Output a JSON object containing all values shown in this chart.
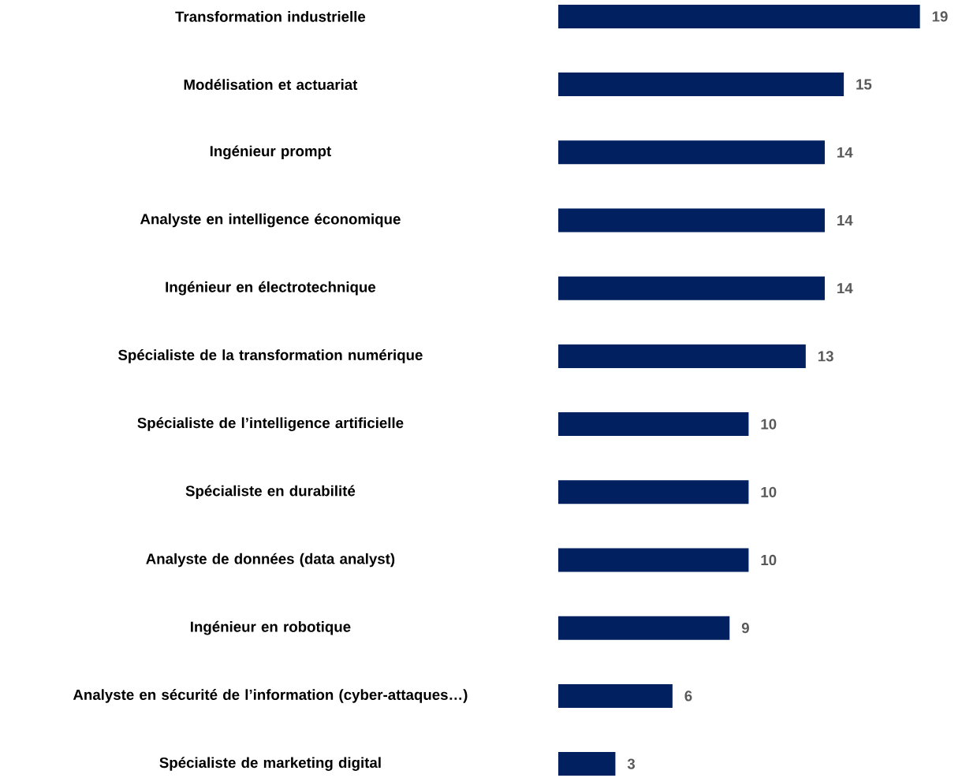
{
  "chart_data": {
    "type": "bar",
    "orientation": "horizontal",
    "categories": [
      "Transformation industrielle",
      "Modélisation et actuariat",
      "Ingénieur prompt",
      "Analyste en intelligence économique",
      "Ingénieur en électrotechnique",
      "Spécialiste de la transformation numérique",
      "Spécialiste de l’intelligence artificielle",
      "Spécialiste en durabilité",
      "Analyste de données (data analyst)",
      "Ingénieur en robotique",
      "Analyste en sécurité de l’information (cyber-attaques…)",
      "Spécialiste de marketing digital"
    ],
    "values": [
      19,
      15,
      14,
      14,
      14,
      13,
      10,
      10,
      10,
      9,
      6,
      3
    ],
    "color": "#002060",
    "data_labels": true
  }
}
